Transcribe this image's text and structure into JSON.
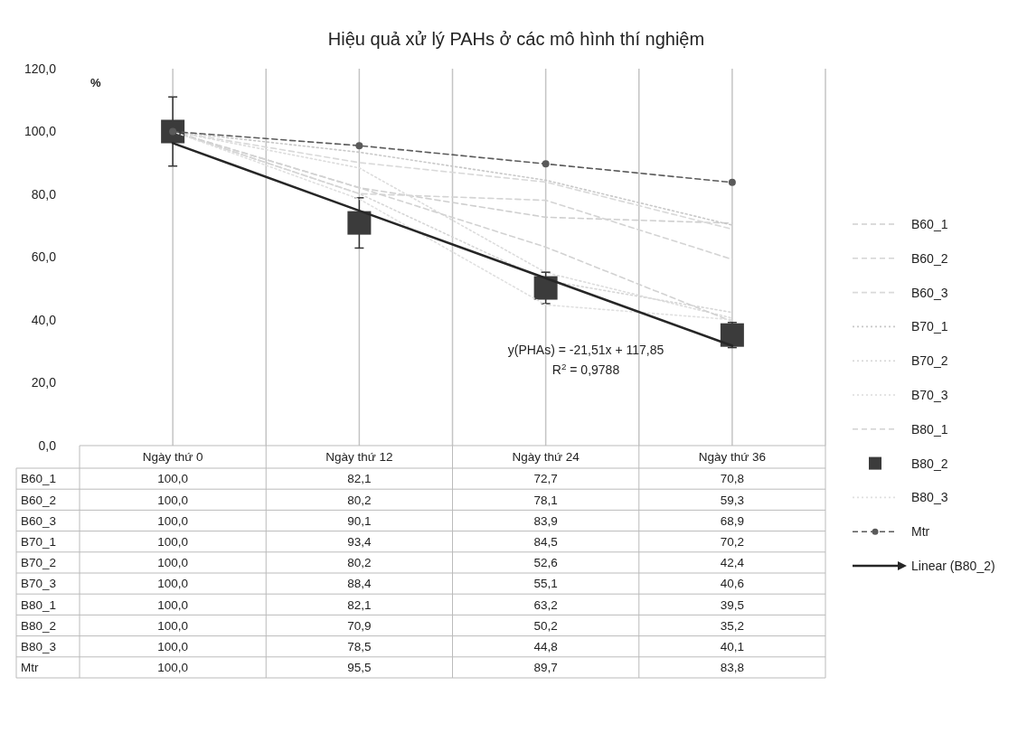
{
  "chart_data": {
    "type": "line",
    "title": "Hiệu quả xử lý PAHs ở các mô hình thí nghiệm",
    "ylabel": "%",
    "categories": [
      "Ngày thứ 0",
      "Ngày thứ 12",
      "Ngày thứ 24",
      "Ngày thứ 36"
    ],
    "ylim": [
      0,
      120
    ],
    "yticks": [
      {
        "value": 0,
        "label": "0,0"
      },
      {
        "value": 20,
        "label": "20,0"
      },
      {
        "value": 40,
        "label": "40,0"
      },
      {
        "value": 60,
        "label": "60,0"
      },
      {
        "value": 80,
        "label": "80,0"
      },
      {
        "value": 100,
        "label": "100,0"
      },
      {
        "value": 120,
        "label": "120,0"
      }
    ],
    "grid": "x",
    "legend": "right",
    "series": [
      {
        "name": "B60_1",
        "color": "#cfcfcf",
        "line_style": "dashed",
        "marker": "none",
        "values": [
          100.0,
          82.1,
          72.7,
          70.8
        ],
        "value_labels": [
          "100,0",
          "82,1",
          "72,7",
          "70,8"
        ]
      },
      {
        "name": "B60_2",
        "color": "#d4d4d4",
        "line_style": "dashed",
        "marker": "none",
        "values": [
          100.0,
          80.2,
          78.1,
          59.3
        ],
        "value_labels": [
          "100,0",
          "80,2",
          "78,1",
          "59,3"
        ]
      },
      {
        "name": "B60_3",
        "color": "#d9d9d9",
        "line_style": "dashed",
        "marker": "none",
        "values": [
          100.0,
          90.1,
          83.9,
          68.9
        ],
        "value_labels": [
          "100,0",
          "90,1",
          "83,9",
          "68,9"
        ]
      },
      {
        "name": "B70_1",
        "color": "#c8c8c8",
        "line_style": "dotted",
        "marker": "none",
        "values": [
          100.0,
          93.4,
          84.5,
          70.2
        ],
        "value_labels": [
          "100,0",
          "93,4",
          "84,5",
          "70,2"
        ]
      },
      {
        "name": "B70_2",
        "color": "#d6d6d6",
        "line_style": "dotted",
        "marker": "none",
        "values": [
          100.0,
          80.2,
          52.6,
          42.4
        ],
        "value_labels": [
          "100,0",
          "80,2",
          "52,6",
          "42,4"
        ]
      },
      {
        "name": "B70_3",
        "color": "#dcdcdc",
        "line_style": "dotted",
        "marker": "none",
        "values": [
          100.0,
          88.4,
          55.1,
          40.6
        ],
        "value_labels": [
          "100,0",
          "88,4",
          "55,1",
          "40,6"
        ]
      },
      {
        "name": "B80_1",
        "color": "#d2d2d2",
        "line_style": "dashed",
        "marker": "none",
        "values": [
          100.0,
          82.1,
          63.2,
          39.5
        ],
        "value_labels": [
          "100,0",
          "82,1",
          "63,2",
          "39,5"
        ]
      },
      {
        "name": "B80_2",
        "type": "scatter",
        "color": "#3b3b3b",
        "marker": "square",
        "values": [
          100.0,
          70.9,
          50.2,
          35.2
        ],
        "value_labels": [
          "100,0",
          "70,9",
          "50,2",
          "35,2"
        ],
        "errors": [
          11,
          8,
          5,
          4
        ]
      },
      {
        "name": "B80_3",
        "color": "#e0e0e0",
        "line_style": "dotted",
        "marker": "none",
        "values": [
          100.0,
          78.5,
          44.8,
          40.1
        ],
        "value_labels": [
          "100,0",
          "78,5",
          "44,8",
          "40,1"
        ]
      },
      {
        "name": "Mtr",
        "color": "#5a5a5a",
        "line_style": "dashed",
        "marker": "circle",
        "values": [
          100.0,
          95.5,
          89.7,
          83.8
        ],
        "value_labels": [
          "100,0",
          "95,5",
          "89,7",
          "83,8"
        ]
      },
      {
        "name": "Linear (B80_2)",
        "color": "#262626",
        "line_style": "solid",
        "marker": "none",
        "values": [
          96.3,
          74.8,
          53.3,
          31.8
        ]
      }
    ],
    "annotations": [
      "y(PHAs) = -21,51x + 117,85",
      "R$^{2}$ = 0,9788"
    ]
  }
}
